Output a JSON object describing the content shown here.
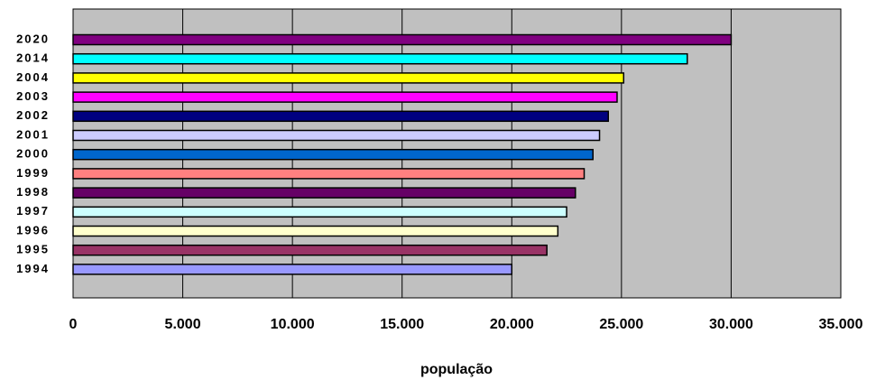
{
  "chart_data": {
    "type": "bar",
    "orientation": "horizontal",
    "x_label": "população",
    "categories": [
      "2020",
      "2014",
      "2004",
      "2003",
      "2002",
      "2001",
      "2000",
      "1999",
      "1998",
      "1997",
      "1996",
      "1995",
      "1994"
    ],
    "values": [
      30000,
      28000,
      25100,
      24800,
      24400,
      24000,
      23700,
      23300,
      22900,
      22500,
      22100,
      21600,
      20000
    ],
    "colors": [
      "#800080",
      "#00ffff",
      "#ffff00",
      "#ff00ff",
      "#000080",
      "#ccccff",
      "#0066cc",
      "#ff8080",
      "#660066",
      "#ccffff",
      "#ffffcc",
      "#993366",
      "#9999ff"
    ],
    "xlim": [
      0,
      35000
    ],
    "xticks": [
      0,
      {
        "value": 5000,
        "label": "5.000"
      },
      {
        "value": 10000,
        "label": "10.000"
      },
      {
        "value": 15000,
        "label": "15.000"
      },
      {
        "value": 20000,
        "label": "20.000"
      },
      {
        "value": 25000,
        "label": "25.000"
      },
      {
        "value": 30000,
        "label": "30.000"
      },
      {
        "value": 35000,
        "label": "35.000"
      }
    ],
    "grid": true
  }
}
